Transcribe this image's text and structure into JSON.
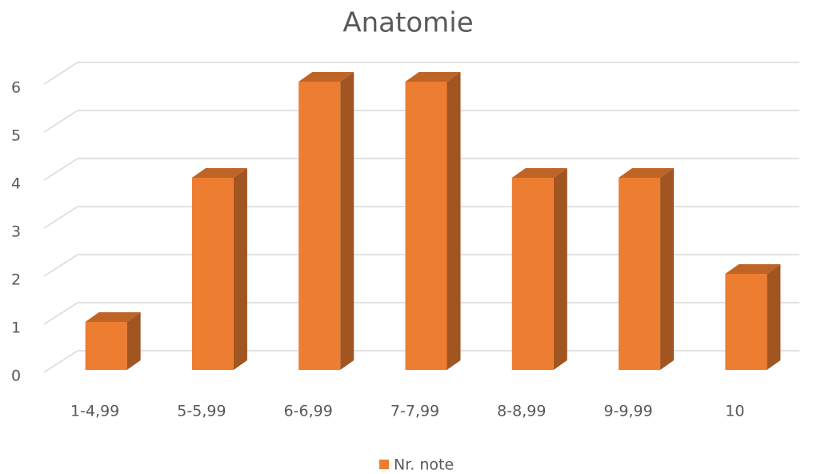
{
  "chart_data": {
    "type": "bar",
    "title": "Anatomie",
    "categories": [
      "1-4,99",
      "5-5,99",
      "6-6,99",
      "7-7,99",
      "8-8,99",
      "9-9,99",
      "10"
    ],
    "series": [
      {
        "name": "Nr. note",
        "color": "#ed7d31",
        "values": [
          1,
          4,
          6,
          6,
          4,
          4,
          2
        ]
      }
    ],
    "ylim": [
      0,
      6
    ],
    "yticks": [
      0,
      1,
      2,
      3,
      4,
      5,
      6
    ],
    "grid": true,
    "legend": "bottom"
  }
}
